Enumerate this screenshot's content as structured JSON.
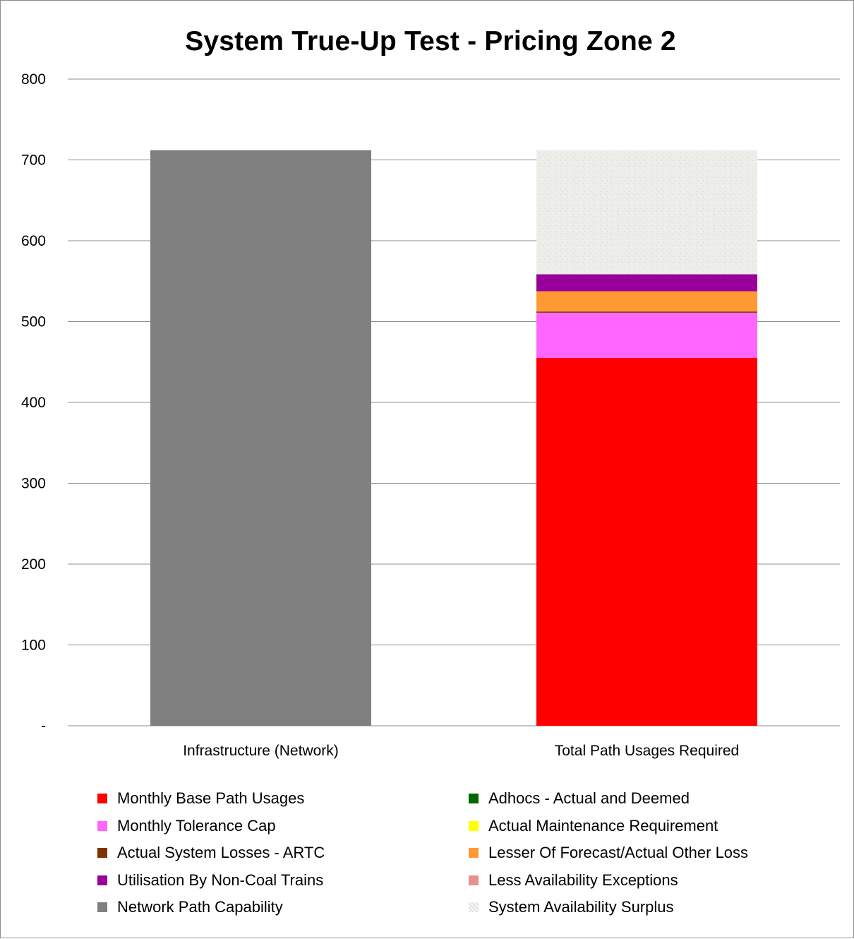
{
  "chart_data": {
    "type": "bar",
    "stacked": true,
    "title": "System True-Up Test - Pricing Zone 2",
    "xlabel": "",
    "ylabel": "",
    "ylim": [
      0,
      800
    ],
    "yticks": [
      {
        "value": 0,
        "label": "-"
      },
      {
        "value": 100,
        "label": "100"
      },
      {
        "value": 200,
        "label": "200"
      },
      {
        "value": 300,
        "label": "300"
      },
      {
        "value": 400,
        "label": "400"
      },
      {
        "value": 500,
        "label": "500"
      },
      {
        "value": 600,
        "label": "600"
      },
      {
        "value": 700,
        "label": "700"
      },
      {
        "value": 800,
        "label": "800"
      }
    ],
    "grid": true,
    "legend_position": "bottom",
    "categories": [
      "Infrastructure (Network)",
      "Total Path Usages Required"
    ],
    "series": [
      {
        "name": "Monthly Base Path Usages",
        "color": "#ff0000",
        "values": [
          0,
          455
        ]
      },
      {
        "name": "Monthly Tolerance Cap",
        "color": "#ff66ff",
        "values": [
          0,
          56
        ]
      },
      {
        "name": "Actual System Losses - ARTC",
        "color": "#7f3300",
        "values": [
          0,
          1.5
        ]
      },
      {
        "name": "Utilisation By Non-Coal Trains",
        "color": "#990099",
        "values": [
          0,
          21
        ]
      },
      {
        "name": "Network Path Capability",
        "color": "#808080",
        "values": [
          712,
          0
        ]
      },
      {
        "name": "Adhocs - Actual and Deemed",
        "color": "#006600",
        "values": [
          0,
          0
        ]
      },
      {
        "name": "Actual Maintenance Requirement",
        "color": "#ffff00",
        "values": [
          0,
          0
        ]
      },
      {
        "name": "Lesser Of Forecast/Actual Other Loss",
        "color": "#ff9933",
        "values": [
          0,
          25
        ]
      },
      {
        "name": "Less Availability Exceptions",
        "color": "#e6908f",
        "values": [
          0,
          0
        ]
      },
      {
        "name": "System Availability Surplus",
        "color": "#ededea",
        "values": [
          0,
          153.5
        ]
      }
    ],
    "stack_order": [
      "Network Path Capability",
      "Monthly Base Path Usages",
      "Monthly Tolerance Cap",
      "Actual System Losses - ARTC",
      "Lesser Of Forecast/Actual Other Loss",
      "Utilisation By Non-Coal Trains",
      "Adhocs - Actual and Deemed",
      "Actual Maintenance Requirement",
      "Less Availability Exceptions",
      "System Availability Surplus"
    ],
    "legend_order": [
      "Monthly Base Path Usages",
      "Adhocs - Actual and Deemed",
      "Monthly Tolerance Cap",
      "Actual Maintenance Requirement",
      "Actual System Losses - ARTC",
      "Lesser Of Forecast/Actual Other Loss",
      "Utilisation By Non-Coal Trains",
      "Less Availability Exceptions",
      "Network Path Capability",
      "System Availability Surplus"
    ]
  }
}
